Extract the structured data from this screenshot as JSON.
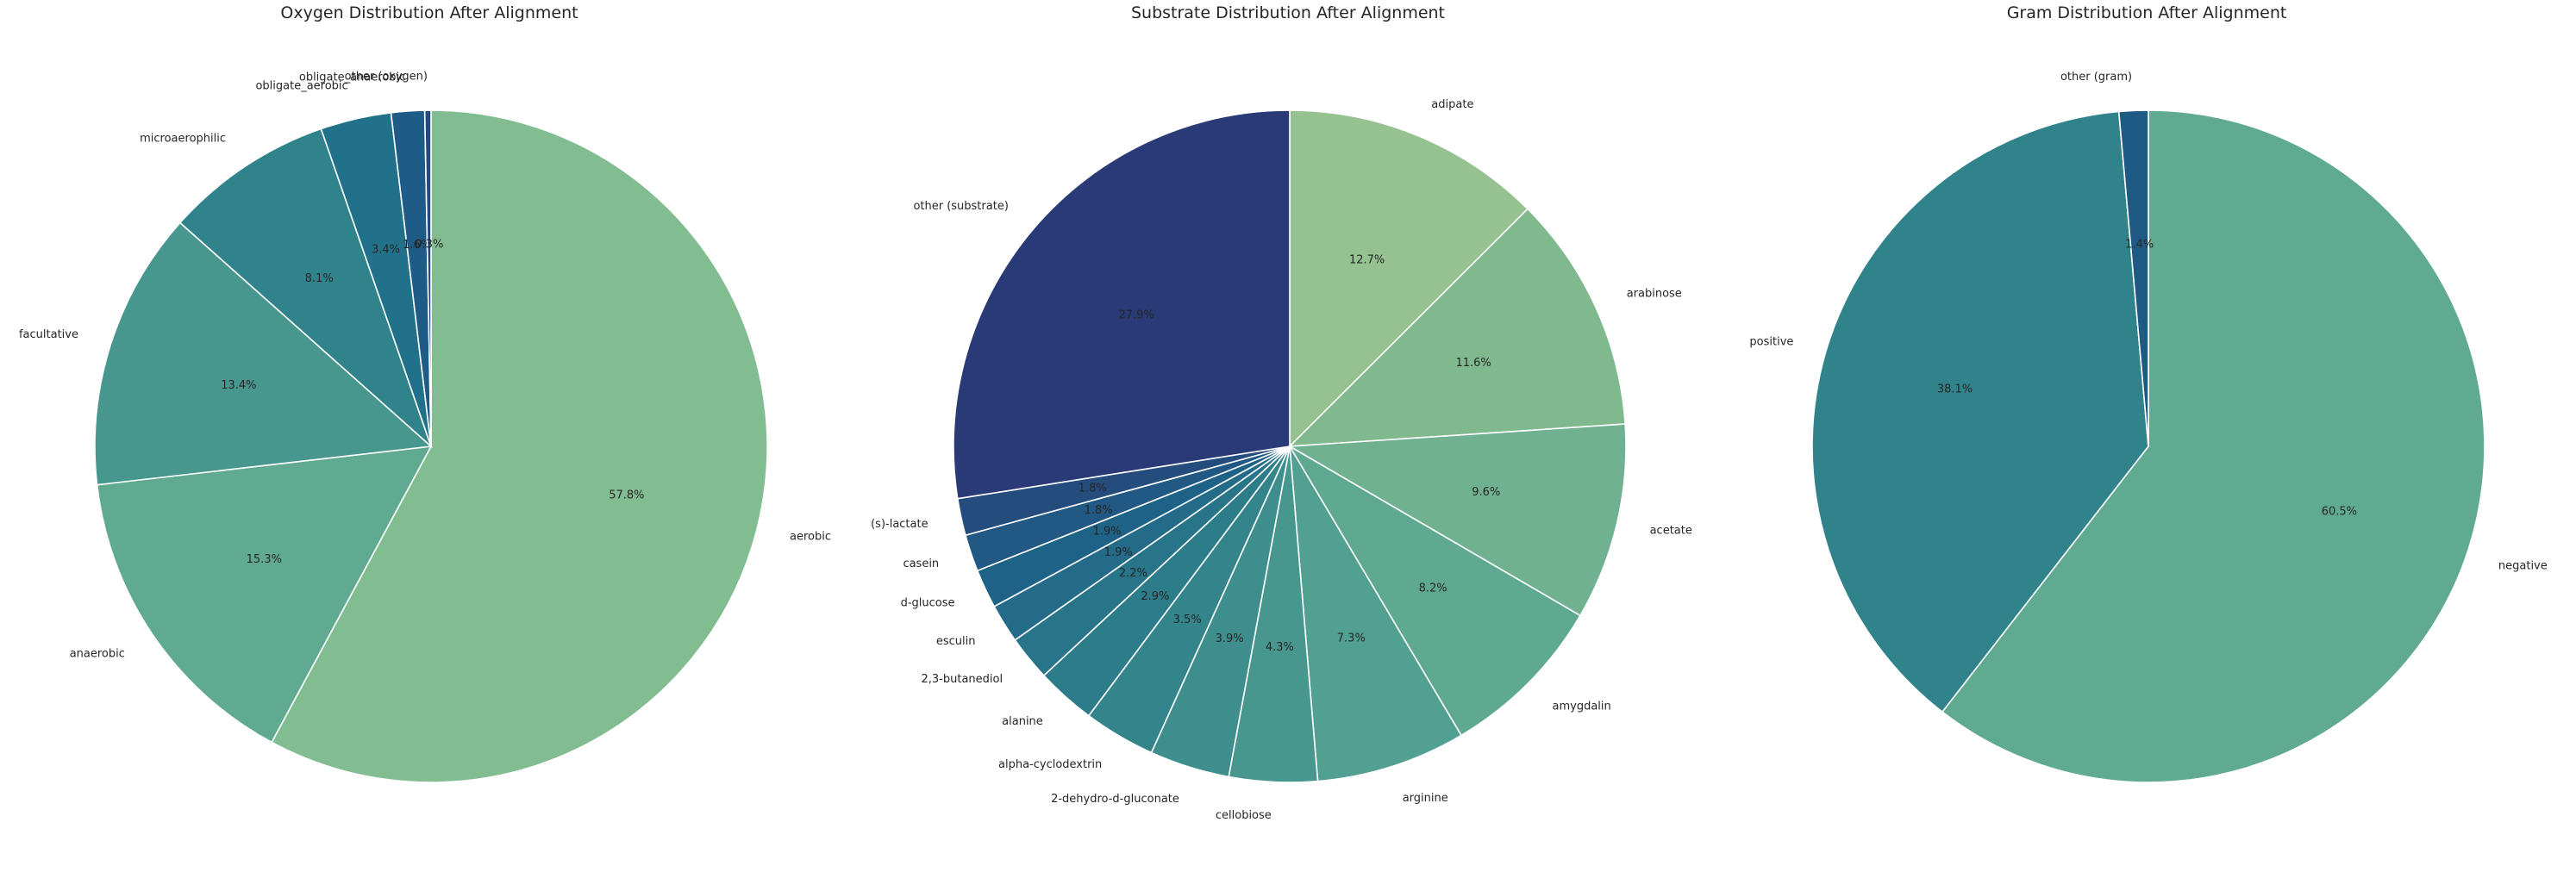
{
  "chart_data": [
    {
      "type": "pie",
      "title": "Oxygen Distribution After Alignment",
      "start_angle_deg": 90,
      "direction": "clockwise",
      "legend": "none",
      "slices": [
        {
          "label": "aerobic",
          "value": 57.8,
          "pct_text": "57.8%",
          "color": "#82bd91"
        },
        {
          "label": "anaerobic",
          "value": 15.3,
          "pct_text": "15.3%",
          "color": "#60aa92"
        },
        {
          "label": "facultative",
          "value": 13.4,
          "pct_text": "13.4%",
          "color": "#47978f"
        },
        {
          "label": "microaerophilic",
          "value": 8.1,
          "pct_text": "8.1%",
          "color": "#30838b"
        },
        {
          "label": "obligate_aerobic",
          "value": 3.4,
          "pct_text": "3.4%",
          "color": "#22718a"
        },
        {
          "label": "obligate_anaerobic",
          "value": 1.6,
          "pct_text": "1.6%",
          "color": "#1e5c87"
        },
        {
          "label": "other (oxygen)",
          "value": 0.3,
          "pct_text": "0.3%",
          "color": "#234a7c"
        }
      ]
    },
    {
      "type": "pie",
      "title": "Substrate Distribution After Alignment",
      "start_angle_deg": 90,
      "direction": "clockwise",
      "legend": "none",
      "slices": [
        {
          "label": "adipate",
          "value": 12.7,
          "pct_text": "12.7%",
          "color": "#95c290"
        },
        {
          "label": "arabinose",
          "value": 11.6,
          "pct_text": "11.6%",
          "color": "#81b98f"
        },
        {
          "label": "acetate",
          "value": 9.6,
          "pct_text": "9.6%",
          "color": "#6fb190"
        },
        {
          "label": "amygdalin",
          "value": 8.2,
          "pct_text": "8.2%",
          "color": "#5fa991"
        },
        {
          "label": "arginine",
          "value": 7.3,
          "pct_text": "7.3%",
          "color": "#52a091"
        },
        {
          "label": "cellobiose",
          "value": 4.3,
          "pct_text": "4.3%",
          "color": "#47978f"
        },
        {
          "label": "2-dehydro-d-gluconate",
          "value": 3.9,
          "pct_text": "3.9%",
          "color": "#3d8e8d"
        },
        {
          "label": "alpha-cyclodextrin",
          "value": 3.5,
          "pct_text": "3.5%",
          "color": "#33858b"
        },
        {
          "label": "alanine",
          "value": 2.9,
          "pct_text": "2.9%",
          "color": "#2d7c8a"
        },
        {
          "label": "2,3-butanediol",
          "value": 2.2,
          "pct_text": "2.2%",
          "color": "#287489"
        },
        {
          "label": "esculin",
          "value": 1.9,
          "pct_text": "1.9%",
          "color": "#236b88"
        },
        {
          "label": "d-glucose",
          "value": 1.9,
          "pct_text": "1.9%",
          "color": "#1f6287"
        },
        {
          "label": "casein",
          "value": 1.8,
          "pct_text": "1.8%",
          "color": "#215984"
        },
        {
          "label": "(s)-lactate",
          "value": 1.8,
          "pct_text": "1.8%",
          "color": "#244d7e"
        },
        {
          "label": "other (substrate)",
          "value": 27.9,
          "pct_text": "27.9%",
          "color": "#2a3a77"
        }
      ]
    },
    {
      "type": "pie",
      "title": "Gram Distribution After Alignment",
      "start_angle_deg": 90,
      "direction": "clockwise",
      "legend": "none",
      "slices": [
        {
          "label": "negative",
          "value": 60.5,
          "pct_text": "60.5%",
          "color": "#60aa92"
        },
        {
          "label": "positive",
          "value": 38.1,
          "pct_text": "38.1%",
          "color": "#30838b"
        },
        {
          "label": "other (gram)",
          "value": 1.4,
          "pct_text": "1.4%",
          "color": "#1f5a85"
        }
      ]
    }
  ]
}
